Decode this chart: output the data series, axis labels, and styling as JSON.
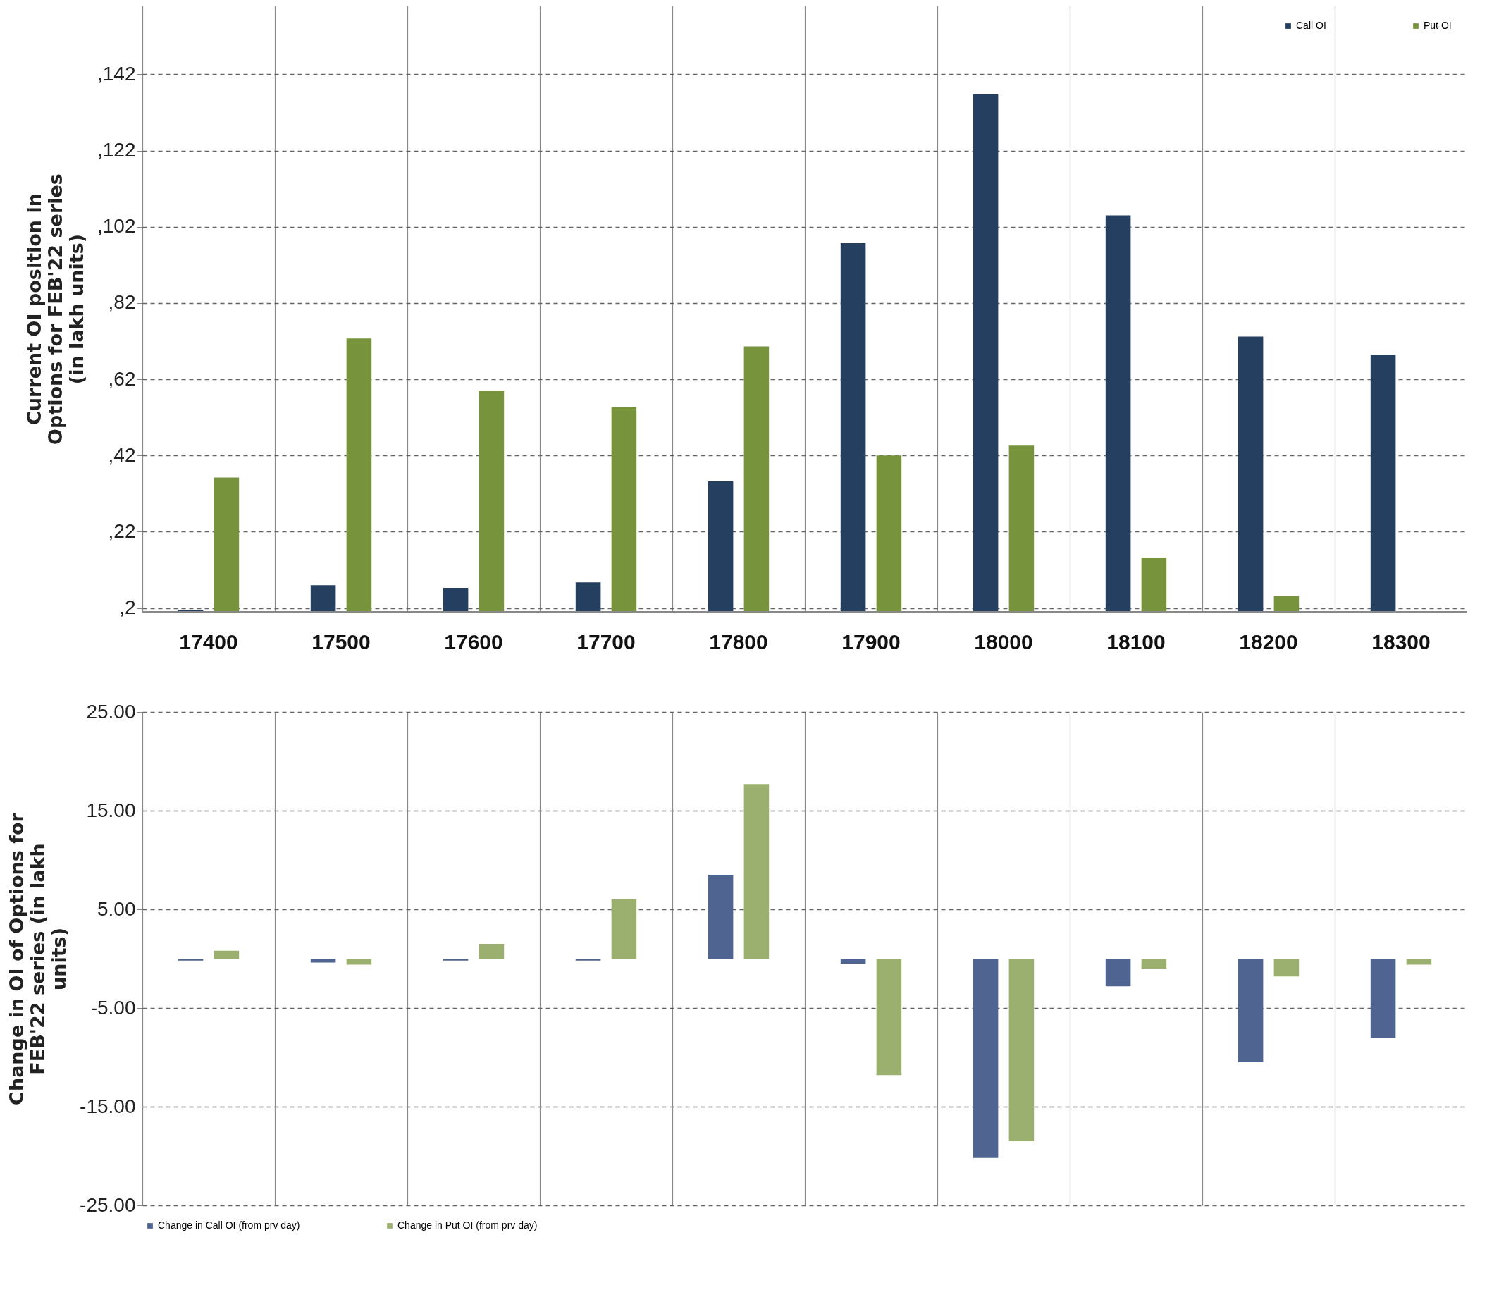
{
  "chart_data": [
    {
      "type": "bar",
      "ylabel": "Current OI position in Options for FEB'22 series (in lakh units)",
      "categories": [
        "17400",
        "17500",
        "17600",
        "17700",
        "17800",
        "17900",
        "18000",
        "18100",
        "18200",
        "18300"
      ],
      "series": [
        {
          "name": "Call OI",
          "color": "#243f60",
          "values": [
            1.5,
            8,
            7.3,
            8.7,
            35.2,
            97.7,
            136.7,
            105,
            73.2,
            68.4
          ]
        },
        {
          "name": "Put OI",
          "color": "#77933c",
          "values": [
            36.2,
            72.7,
            59,
            54.7,
            70.6,
            42,
            44.6,
            15.2,
            5.1,
            null
          ]
        }
      ],
      "ylim": [
        1,
        160
      ],
      "yticks": [
        {
          "value": 2,
          "label": ",2"
        },
        {
          "value": 22,
          "label": ",22"
        },
        {
          "value": 42,
          "label": ",42"
        },
        {
          "value": 62,
          "label": ",62"
        },
        {
          "value": 82,
          "label": ",82"
        },
        {
          "value": 102,
          "label": ",102"
        },
        {
          "value": 122,
          "label": ",122"
        },
        {
          "value": 142,
          "label": ",142"
        }
      ],
      "grid": true,
      "legend": "top right"
    },
    {
      "type": "bar",
      "ylabel": "Change in OI of Options for FEB'22 series (in lakh units)",
      "categories": [
        "17400",
        "17500",
        "17600",
        "17700",
        "17800",
        "17900",
        "18000",
        "18100",
        "18200",
        "18300"
      ],
      "series": [
        {
          "name": "Change in Call OI (from prv day)",
          "color": "#4f6491",
          "values": [
            -0.2,
            -0.4,
            -0.2,
            -0.2,
            8.5,
            -0.5,
            -20.2,
            -2.8,
            -10.5,
            -8
          ]
        },
        {
          "name": "Change in Put OI (from prv day)",
          "color": "#9bb06e",
          "values": [
            0.8,
            -0.6,
            1.5,
            6,
            17.7,
            -11.8,
            -18.5,
            -1,
            -1.8,
            -0.6
          ]
        }
      ],
      "ylim": [
        -25,
        25
      ],
      "yticks": [
        {
          "value": -25,
          "label": "-25.00"
        },
        {
          "value": -15,
          "label": "-15.00"
        },
        {
          "value": -5,
          "label": "-5.00"
        },
        {
          "value": 5,
          "label": "5.00"
        },
        {
          "value": 15,
          "label": "15.00"
        },
        {
          "value": 25,
          "label": "25.00"
        }
      ],
      "grid": true,
      "legend": "bottom",
      "tick_labels": "y"
    }
  ]
}
